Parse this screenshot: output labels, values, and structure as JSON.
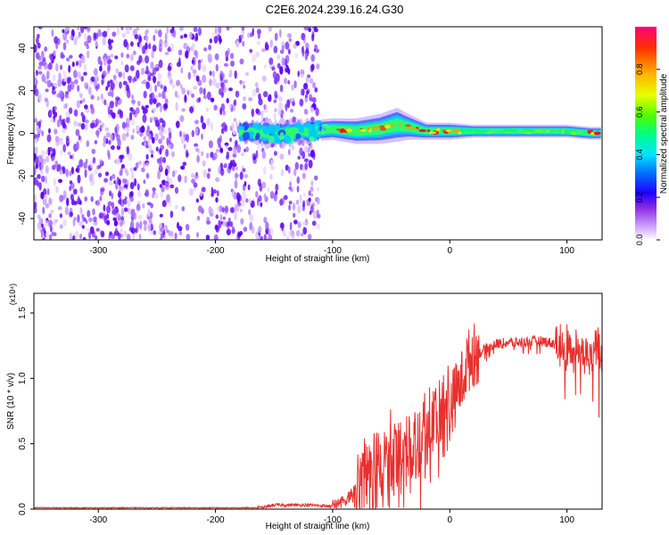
{
  "figure": {
    "title": "C2E6.2024.239.16.24.G30"
  },
  "chart_data": [
    {
      "type": "heatmap",
      "xlabel": "Height of straight line (km)",
      "ylabel": "Frequency (Hz)",
      "xlim": [
        -355,
        130
      ],
      "ylim": [
        -50,
        50
      ],
      "xticks": [
        -300,
        -200,
        -100,
        0,
        100
      ],
      "yticks": [
        -40,
        -20,
        0,
        20,
        40
      ],
      "colorbar": {
        "label": "Normalized spectral amplitude",
        "range": [
          0,
          1
        ],
        "ticks": [
          0.0,
          0.2,
          0.4,
          0.6,
          0.8
        ],
        "tick_labels": [
          "0.0",
          "0.2",
          "0.4",
          "0.6",
          "0.8"
        ]
      },
      "noise_region_km": [
        -355,
        -112
      ],
      "signal_start_km": -180,
      "signal_ridge": {
        "x": [
          -180,
          -160,
          -140,
          -120,
          -100,
          -80,
          -60,
          -45,
          -35,
          -20,
          -10,
          0,
          20,
          40,
          60,
          80,
          100,
          120,
          130
        ],
        "y": [
          1,
          0,
          0,
          1,
          2,
          1,
          2,
          4,
          3,
          1,
          1,
          1,
          1,
          1,
          1,
          1,
          1,
          0,
          0
        ]
      },
      "signal_width_hz": [
        5,
        6,
        6,
        5,
        5,
        6,
        7,
        8,
        6,
        4,
        4,
        4,
        3,
        3,
        3,
        3,
        3,
        3,
        3
      ]
    },
    {
      "type": "line",
      "xlabel": "Height of straight line (km)",
      "ylabel": "SNR (10 * v/v)",
      "y_multiplier": "(x10⁴)",
      "xlim": [
        -355,
        130
      ],
      "ylim": [
        0,
        1.65
      ],
      "xticks": [
        -300,
        -200,
        -100,
        0,
        100
      ],
      "yticks": [
        0.0,
        0.5,
        1.0,
        1.5
      ],
      "ytick_labels": [
        "0.0",
        "0.5",
        "1.0",
        "1.5"
      ],
      "color": "#e8302e",
      "series": [
        {
          "x": [
            -355,
            -300,
            -250,
            -200,
            -160,
            -150,
            -120,
            -100,
            -90,
            -80,
            -70,
            -60,
            -50,
            -40,
            -30,
            -20,
            -10,
            0,
            10,
            15,
            20,
            30,
            40,
            50,
            60,
            70,
            80,
            90,
            100,
            110,
            120,
            125,
            130
          ],
          "y": [
            0.01,
            0.01,
            0.01,
            0.01,
            0.01,
            0.03,
            0.03,
            0.02,
            0.06,
            0.15,
            0.22,
            0.28,
            0.33,
            0.4,
            0.5,
            0.58,
            0.66,
            0.76,
            0.95,
            1.1,
            1.15,
            1.22,
            1.26,
            1.27,
            1.27,
            1.28,
            1.28,
            1.26,
            1.24,
            1.2,
            1.15,
            1.25,
            1.1
          ]
        }
      ]
    }
  ]
}
